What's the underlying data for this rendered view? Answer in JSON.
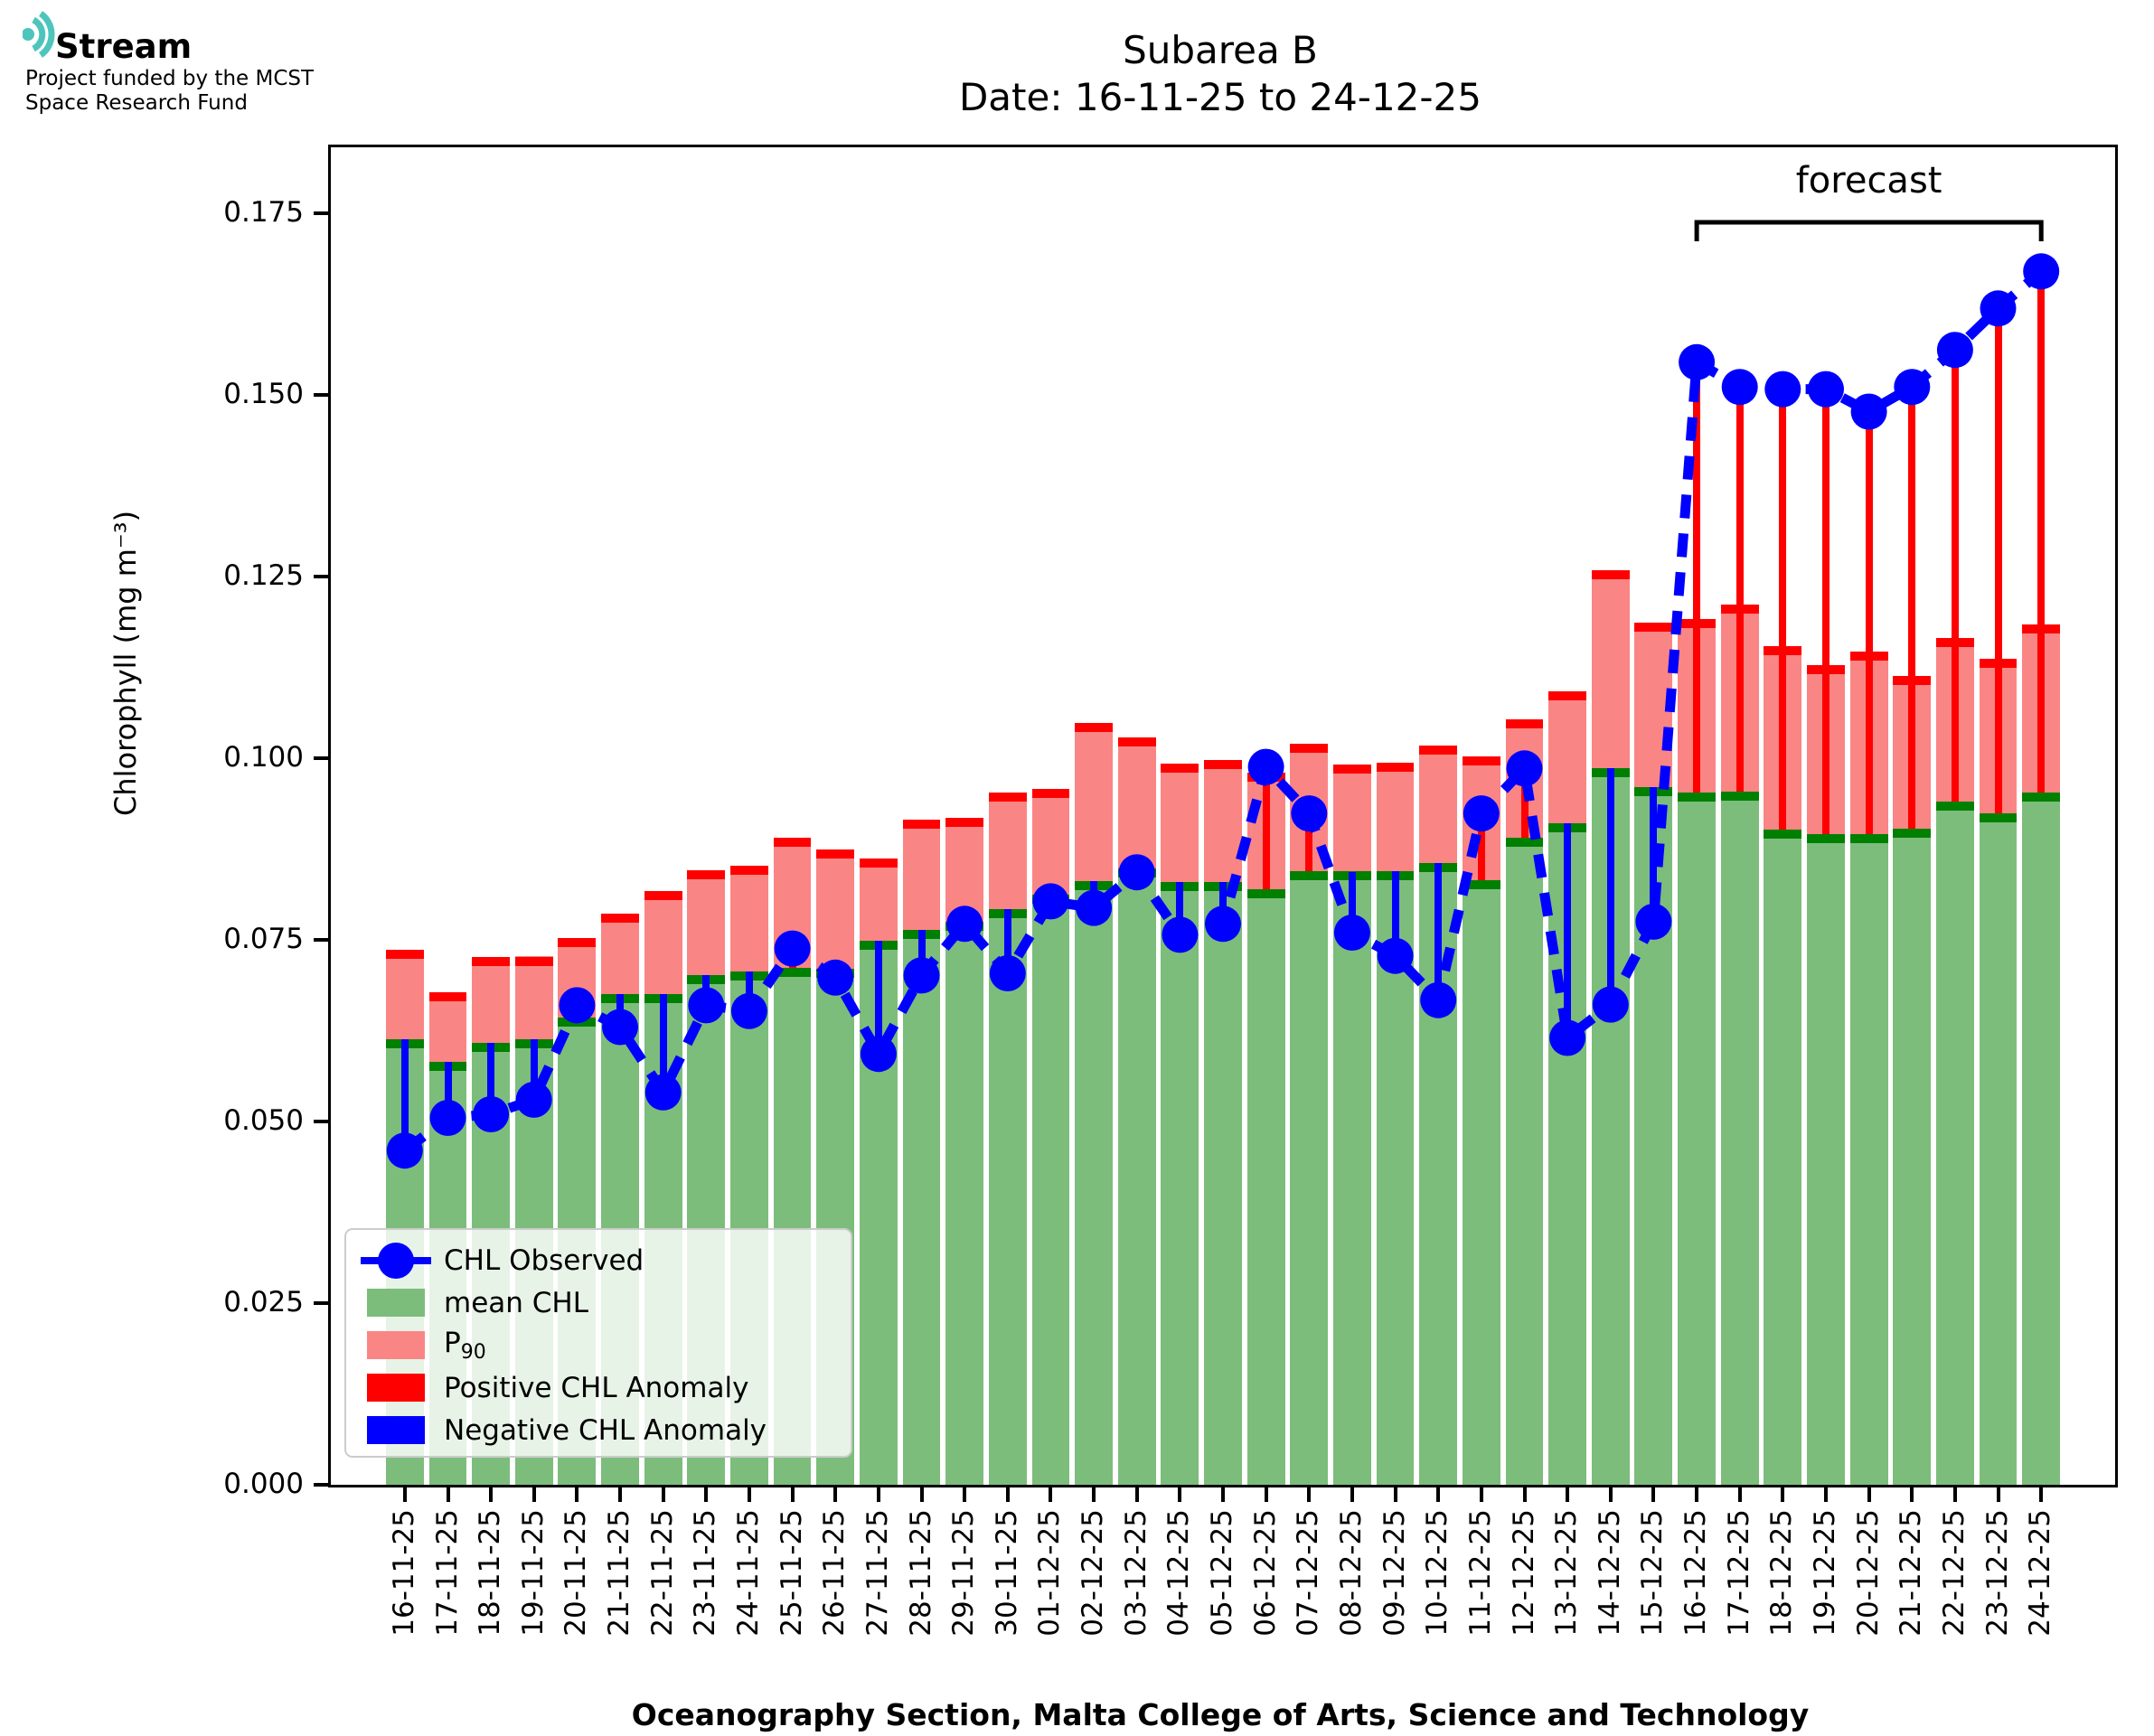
{
  "logo": {
    "brand": "Stream",
    "subtitle_line1": "Project funded by the MCST",
    "subtitle_line2": "Space Research Fund"
  },
  "title": {
    "line1": "Subarea B",
    "line2": "Date: 16-11-25 to 24-12-25"
  },
  "axes": {
    "y_label": "Chlorophyll (mg m⁻³)",
    "x_label": "Oceanography Section, Malta College of Arts, Science and Technology",
    "y_tick_labels": [
      "0.000",
      "0.025",
      "0.050",
      "0.075",
      "0.100",
      "0.125",
      "0.150",
      "0.175"
    ]
  },
  "legend": [
    {
      "label": "CHL Observed",
      "marker": "line-dot",
      "color": "#0000FF"
    },
    {
      "label": "mean CHL",
      "marker": "swatch",
      "color": "#7CBD7C"
    },
    {
      "label": "P",
      "sub": "90",
      "marker": "swatch",
      "color": "#FA8585"
    },
    {
      "label": "Positive CHL Anomaly",
      "marker": "swatch",
      "color": "#FF0000"
    },
    {
      "label": "Negative CHL Anomaly",
      "marker": "swatch",
      "color": "#0000FF"
    }
  ],
  "colors": {
    "observed": "#0000FF",
    "mean_bar": "#7CBD7C",
    "mean_cap": "#008000",
    "p90_bar": "#FA8585",
    "p90_cap": "#FF0000",
    "positive_anomaly": "#FF0000",
    "negative_anomaly": "#0000FF",
    "logo_teal": "#4EC5BC"
  },
  "chart_data": {
    "type": "bar",
    "subtype": "bars-with-observed-line",
    "title": "Subarea B  Date: 16-11-25 to 24-12-25",
    "xlabel": "Oceanography Section, Malta College of Arts, Science and Technology",
    "ylabel": "Chlorophyll (mg m⁻³)",
    "ylim": [
      0,
      0.1841
    ],
    "y_ticks": [
      0.0,
      0.025,
      0.05,
      0.075,
      0.1,
      0.125,
      0.15,
      0.175
    ],
    "grid": false,
    "legend_position": "lower-left",
    "categories": [
      "16-11-25",
      "17-11-25",
      "18-11-25",
      "19-11-25",
      "20-11-25",
      "21-11-25",
      "22-11-25",
      "23-11-25",
      "24-11-25",
      "25-11-25",
      "26-11-25",
      "27-11-25",
      "28-11-25",
      "29-11-25",
      "30-11-25",
      "01-12-25",
      "02-12-25",
      "03-12-25",
      "04-12-25",
      "05-12-25",
      "06-12-25",
      "07-12-25",
      "08-12-25",
      "09-12-25",
      "10-12-25",
      "11-12-25",
      "12-12-25",
      "13-12-25",
      "14-12-25",
      "15-12-25",
      "16-12-25",
      "17-12-25",
      "18-12-25",
      "19-12-25",
      "20-12-25",
      "21-12-25",
      "22-12-25",
      "23-12-25",
      "24-12-25"
    ],
    "series": [
      {
        "name": "mean CHL",
        "type": "bar",
        "values": [
          0.0613,
          0.0582,
          0.0608,
          0.0613,
          0.0643,
          0.0676,
          0.0676,
          0.0701,
          0.0706,
          0.0712,
          0.071,
          0.0749,
          0.0764,
          0.0775,
          0.0792,
          0.0812,
          0.0831,
          0.0848,
          0.083,
          0.083,
          0.082,
          0.0844,
          0.0844,
          0.0844,
          0.0856,
          0.0832,
          0.089,
          0.091,
          0.0987,
          0.096,
          0.0953,
          0.0954,
          0.0902,
          0.0895,
          0.0896,
          0.0903,
          0.094,
          0.0924,
          0.0953
        ]
      },
      {
        "name": "P90",
        "type": "bar",
        "values": [
          0.0736,
          0.0678,
          0.0727,
          0.0727,
          0.0753,
          0.0786,
          0.0817,
          0.0846,
          0.0852,
          0.089,
          0.0875,
          0.0862,
          0.0915,
          0.0918,
          0.0953,
          0.0958,
          0.1048,
          0.1029,
          0.0993,
          0.0997,
          0.098,
          0.102,
          0.0991,
          0.0994,
          0.1018,
          0.1003,
          0.1054,
          0.1092,
          0.1259,
          0.1187,
          0.1191,
          0.1211,
          0.1154,
          0.1128,
          0.1147,
          0.1113,
          0.1166,
          0.1137,
          0.1184
        ]
      },
      {
        "name": "CHL Observed",
        "type": "line",
        "values": [
          0.046,
          0.0505,
          0.051,
          0.053,
          0.066,
          0.063,
          0.054,
          0.066,
          0.0652,
          0.0738,
          0.0698,
          0.0593,
          0.0701,
          0.0772,
          0.0704,
          0.0803,
          0.0794,
          0.0843,
          0.0757,
          0.0772,
          0.0988,
          0.0924,
          0.076,
          0.0728,
          0.0667,
          0.0924,
          0.0986,
          0.0615,
          0.0661,
          0.0775,
          0.1545,
          0.1511,
          0.1508,
          0.1508,
          0.1477,
          0.1511,
          0.1562,
          0.1619,
          0.167
        ]
      }
    ],
    "anomaly_note": "vertical line from mean CHL top to observed point; red when observed > mean, blue when observed < mean",
    "forecast": {
      "label": "forecast",
      "start_category": "16-12-25",
      "start_index": 30,
      "end_index": 38
    }
  }
}
